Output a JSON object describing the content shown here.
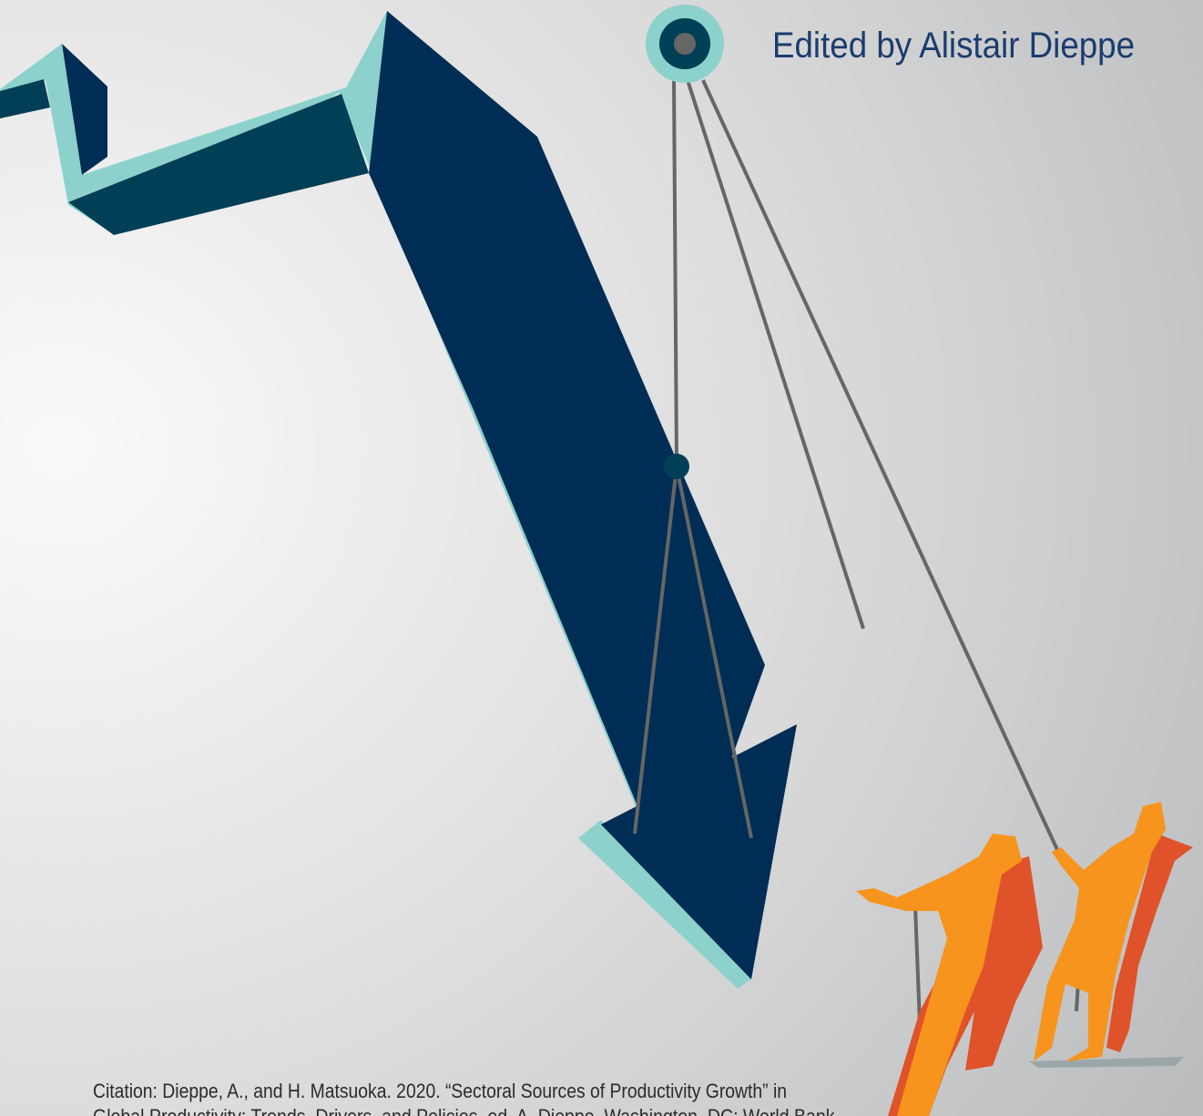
{
  "header": {
    "editor_credit": "Edited by Alistair Dieppe"
  },
  "citation": {
    "lines": [
      "Citation: Dieppe, A., and H. Matsuoka. 2020. “Sectoral Sources of Productivity Growth” in",
      "Global Productivity: Trends, Drivers, and Policies, ed. A. Dieppe. Washington, DC: World Bank."
    ]
  }
}
